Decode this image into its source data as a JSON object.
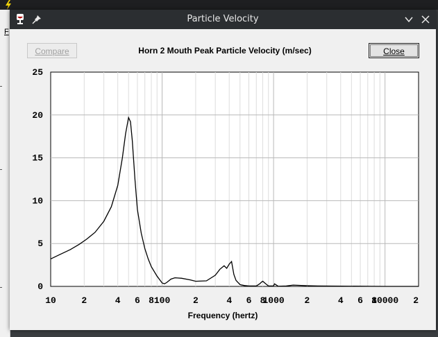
{
  "window": {
    "title": "Particle Velocity",
    "buttons": {
      "compare": "Compare",
      "close": "Close"
    }
  },
  "background": {
    "menu_fragment": "F"
  },
  "icons": {
    "app": "app-wine-icon",
    "pin": "pin-icon",
    "minimize": "chevron-down-icon",
    "close": "close-icon"
  },
  "chart_data": {
    "type": "line",
    "title": "Horn 2 Mouth Peak Particle Velocity (m/sec)",
    "xlabel": "Frequency (hertz)",
    "ylabel": "",
    "x_scale": "log",
    "xlim": [
      10,
      20000
    ],
    "ylim": [
      0,
      25
    ],
    "y_ticks": [
      "0",
      "5",
      "10",
      "15",
      "20",
      "25"
    ],
    "x_tick_labels": [
      {
        "v": 10,
        "t": "10"
      },
      {
        "v": 20,
        "t": "2"
      },
      {
        "v": 40,
        "t": "4"
      },
      {
        "v": 60,
        "t": "6"
      },
      {
        "v": 80,
        "t": "8"
      },
      {
        "v": 100,
        "t": "100"
      },
      {
        "v": 200,
        "t": "2"
      },
      {
        "v": 400,
        "t": "4"
      },
      {
        "v": 600,
        "t": "6"
      },
      {
        "v": 800,
        "t": "8"
      },
      {
        "v": 1000,
        "t": "1000"
      },
      {
        "v": 2000,
        "t": "2"
      },
      {
        "v": 4000,
        "t": "4"
      },
      {
        "v": 6000,
        "t": "6"
      },
      {
        "v": 8000,
        "t": "8"
      },
      {
        "v": 10000,
        "t": "10000"
      },
      {
        "v": 20000,
        "t": "2"
      }
    ],
    "grid": true,
    "series": [
      {
        "color": "#000000",
        "x": [
          10,
          12,
          15,
          18,
          21,
          25,
          30,
          35,
          40,
          44,
          47,
          50,
          52,
          54,
          57,
          60,
          65,
          70,
          75,
          80,
          90,
          100,
          105,
          110,
          120,
          130,
          150,
          180,
          200,
          250,
          300,
          330,
          360,
          380,
          400,
          420,
          440,
          460,
          500,
          550,
          600,
          700,
          750,
          780,
          800,
          850,
          900,
          1000,
          1020,
          1100,
          1300,
          1500,
          2000,
          2500,
          10000,
          20000
        ],
        "y": [
          3.2,
          3.7,
          4.3,
          4.9,
          5.5,
          6.3,
          7.6,
          9.3,
          11.8,
          15.0,
          17.8,
          19.7,
          19.2,
          17.0,
          12.5,
          9.0,
          6.2,
          4.4,
          3.2,
          2.3,
          1.2,
          0.4,
          0.3,
          0.45,
          0.85,
          1.0,
          0.95,
          0.75,
          0.6,
          0.65,
          1.3,
          2.0,
          2.4,
          2.1,
          2.6,
          2.9,
          1.4,
          0.7,
          0.2,
          0.1,
          0.05,
          0.05,
          0.3,
          0.5,
          0.6,
          0.3,
          0.05,
          0.05,
          0.3,
          0.02,
          0.05,
          0.15,
          0.08,
          0.05,
          0.0,
          0.0
        ]
      }
    ]
  }
}
